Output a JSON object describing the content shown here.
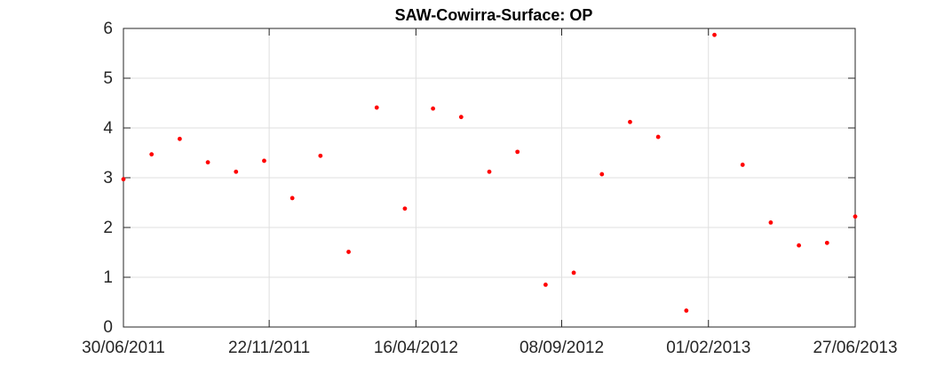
{
  "chart_data": {
    "type": "scatter",
    "title": "SAW-Cowirra-Surface: OP",
    "xlabel": "",
    "ylabel": "",
    "ylim": [
      0,
      6
    ],
    "xlim": [
      "30/06/2011",
      "27/06/2013"
    ],
    "grid": true,
    "colors": {
      "marker": "#ff0000",
      "grid": "#dfdfdf",
      "axis": "#262626",
      "background": "#ffffff"
    },
    "x_ticks": [
      "30/06/2011",
      "22/11/2011",
      "16/04/2012",
      "08/09/2012",
      "01/02/2013",
      "27/06/2013"
    ],
    "y_ticks": [
      0,
      1,
      2,
      3,
      4,
      5,
      6
    ],
    "points": [
      {
        "x": "30/06/2011",
        "y": 2.97
      },
      {
        "x": "28/07/2011",
        "y": 3.47
      },
      {
        "x": "25/08/2011",
        "y": 3.78
      },
      {
        "x": "22/09/2011",
        "y": 3.31
      },
      {
        "x": "20/10/2011",
        "y": 3.12
      },
      {
        "x": "17/11/2011",
        "y": 3.34
      },
      {
        "x": "15/12/2011",
        "y": 2.59
      },
      {
        "x": "12/01/2012",
        "y": 3.44
      },
      {
        "x": "09/02/2012",
        "y": 1.51
      },
      {
        "x": "08/03/2012",
        "y": 4.41
      },
      {
        "x": "05/04/2012",
        "y": 2.38
      },
      {
        "x": "03/05/2012",
        "y": 4.39
      },
      {
        "x": "31/05/2012",
        "y": 4.22
      },
      {
        "x": "28/06/2012",
        "y": 3.12
      },
      {
        "x": "26/07/2012",
        "y": 3.52
      },
      {
        "x": "23/08/2012",
        "y": 0.85
      },
      {
        "x": "20/09/2012",
        "y": 1.09
      },
      {
        "x": "18/10/2012",
        "y": 3.07
      },
      {
        "x": "15/11/2012",
        "y": 4.12
      },
      {
        "x": "13/12/2012",
        "y": 3.82
      },
      {
        "x": "10/01/2013",
        "y": 0.33
      },
      {
        "x": "07/02/2013",
        "y": 5.87
      },
      {
        "x": "07/03/2013",
        "y": 3.26
      },
      {
        "x": "04/04/2013",
        "y": 2.1
      },
      {
        "x": "02/05/2013",
        "y": 1.64
      },
      {
        "x": "30/05/2013",
        "y": 1.69
      },
      {
        "x": "27/06/2013",
        "y": 2.22
      }
    ]
  }
}
